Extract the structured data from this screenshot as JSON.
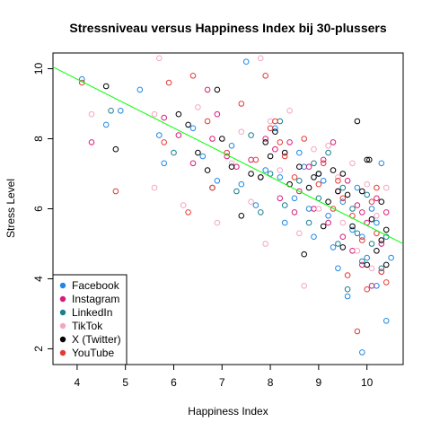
{
  "chart_data": {
    "type": "scatter",
    "title": "Stressniveau versus Happiness Index bij 30-plussers",
    "xlabel": "Happiness Index",
    "ylabel": "Stress Level",
    "xlim": [
      3.5,
      10.75
    ],
    "ylim": [
      1.55,
      10.45
    ],
    "x_ticks": [
      "4",
      "5",
      "6",
      "7",
      "8",
      "9",
      "10"
    ],
    "y_ticks": [
      "2",
      "4",
      "6",
      "8",
      "10"
    ],
    "grid": false,
    "legend_position": "bottom-left",
    "trendline": {
      "color": "#00ff00",
      "x1": 3.5,
      "y1": 10.05,
      "x2": 10.75,
      "y2": 5.0
    },
    "series": [
      {
        "name": "Facebook",
        "color": "#1e88e5",
        "points": [
          [
            4.1,
            9.7
          ],
          [
            4.6,
            8.4
          ],
          [
            4.9,
            8.8
          ],
          [
            5.3,
            9.4
          ],
          [
            5.7,
            8.1
          ],
          [
            5.8,
            7.3
          ],
          [
            6.4,
            8.3
          ],
          [
            6.9,
            6.8
          ],
          [
            7.2,
            7.8
          ],
          [
            7.5,
            10.2
          ],
          [
            7.7,
            6.1
          ],
          [
            7.9,
            7.1
          ],
          [
            8.1,
            8.3
          ],
          [
            8.2,
            6.9
          ],
          [
            8.5,
            6.3
          ],
          [
            8.6,
            7.6
          ],
          [
            8.8,
            6.0
          ],
          [
            8.9,
            5.2
          ],
          [
            9.1,
            6.8
          ],
          [
            9.2,
            5.8
          ],
          [
            9.3,
            4.9
          ],
          [
            9.5,
            6.2
          ],
          [
            9.6,
            3.5
          ],
          [
            9.7,
            5.4
          ],
          [
            9.8,
            6.6
          ],
          [
            9.9,
            1.9
          ],
          [
            10.0,
            4.6
          ],
          [
            10.1,
            6.0
          ],
          [
            10.2,
            3.8
          ],
          [
            10.3,
            7.3
          ],
          [
            10.4,
            2.8
          ],
          [
            10.5,
            4.6
          ],
          [
            6.6,
            7.5
          ],
          [
            7.4,
            6.7
          ],
          [
            8.3,
            5.6
          ],
          [
            9.0,
            7.0
          ],
          [
            9.4,
            4.3
          ],
          [
            9.9,
            5.2
          ],
          [
            10.2,
            5.6
          ],
          [
            8.7,
            7.2
          ]
        ]
      },
      {
        "name": "Instagram",
        "color": "#d81b7a",
        "points": [
          [
            4.3,
            7.9
          ],
          [
            5.8,
            8.6
          ],
          [
            6.1,
            8.1
          ],
          [
            6.4,
            7.3
          ],
          [
            6.7,
            9.4
          ],
          [
            6.9,
            8.7
          ],
          [
            7.1,
            7.5
          ],
          [
            7.3,
            7.2
          ],
          [
            7.6,
            7.4
          ],
          [
            7.9,
            8.0
          ],
          [
            8.1,
            7.7
          ],
          [
            8.2,
            6.3
          ],
          [
            8.4,
            7.9
          ],
          [
            8.6,
            6.5
          ],
          [
            8.8,
            7.2
          ],
          [
            8.9,
            6.0
          ],
          [
            9.1,
            7.4
          ],
          [
            9.2,
            5.6
          ],
          [
            9.3,
            7.9
          ],
          [
            9.5,
            5.2
          ],
          [
            9.6,
            6.8
          ],
          [
            9.7,
            4.8
          ],
          [
            9.8,
            6.1
          ],
          [
            9.9,
            4.4
          ],
          [
            10.0,
            5.6
          ],
          [
            10.1,
            3.8
          ],
          [
            10.2,
            6.3
          ],
          [
            10.3,
            4.2
          ],
          [
            10.4,
            5.9
          ],
          [
            6.8,
            8.0
          ],
          [
            7.8,
            6.9
          ],
          [
            8.5,
            5.9
          ],
          [
            9.4,
            6.5
          ],
          [
            9.9,
            5.9
          ],
          [
            10.3,
            5.0
          ]
        ]
      },
      {
        "name": "LinkedIn",
        "color": "#1a7f8f",
        "points": [
          [
            4.7,
            8.8
          ],
          [
            6.0,
            7.6
          ],
          [
            6.8,
            6.6
          ],
          [
            7.3,
            6.5
          ],
          [
            7.6,
            8.1
          ],
          [
            7.8,
            5.9
          ],
          [
            8.0,
            7.0
          ],
          [
            8.2,
            8.5
          ],
          [
            8.3,
            6.1
          ],
          [
            8.6,
            6.8
          ],
          [
            8.8,
            5.6
          ],
          [
            9.0,
            6.3
          ],
          [
            9.2,
            7.6
          ],
          [
            9.4,
            5.0
          ],
          [
            9.5,
            6.6
          ],
          [
            9.6,
            3.7
          ],
          [
            9.8,
            5.3
          ],
          [
            9.9,
            4.5
          ],
          [
            10.0,
            6.4
          ],
          [
            10.1,
            5.0
          ],
          [
            10.3,
            4.3
          ],
          [
            10.4,
            5.2
          ],
          [
            8.9,
            7.3
          ],
          [
            9.7,
            6.0
          ]
        ]
      },
      {
        "name": "TikTok",
        "color": "#f4a6c0",
        "points": [
          [
            4.3,
            8.7
          ],
          [
            5.6,
            8.7
          ],
          [
            5.7,
            10.3
          ],
          [
            6.2,
            6.1
          ],
          [
            6.5,
            8.9
          ],
          [
            6.9,
            5.6
          ],
          [
            7.2,
            7.3
          ],
          [
            7.4,
            8.2
          ],
          [
            7.6,
            6.2
          ],
          [
            7.8,
            10.3
          ],
          [
            8.0,
            8.5
          ],
          [
            8.2,
            7.1
          ],
          [
            8.4,
            8.8
          ],
          [
            8.6,
            5.3
          ],
          [
            8.7,
            3.8
          ],
          [
            8.9,
            7.7
          ],
          [
            9.0,
            6.0
          ],
          [
            9.2,
            7.8
          ],
          [
            9.4,
            6.9
          ],
          [
            9.5,
            5.6
          ],
          [
            9.7,
            7.3
          ],
          [
            9.8,
            4.8
          ],
          [
            10.0,
            6.7
          ],
          [
            10.1,
            4.3
          ],
          [
            10.2,
            5.8
          ],
          [
            10.4,
            6.6
          ],
          [
            5.6,
            6.6
          ],
          [
            7.9,
            5.0
          ]
        ]
      },
      {
        "name": "X (Twitter)",
        "color": "#000000",
        "points": [
          [
            4.6,
            9.5
          ],
          [
            4.8,
            7.7
          ],
          [
            6.1,
            8.7
          ],
          [
            6.5,
            7.6
          ],
          [
            6.9,
            9.4
          ],
          [
            7.0,
            8.0
          ],
          [
            7.2,
            7.2
          ],
          [
            7.4,
            5.8
          ],
          [
            7.6,
            7.0
          ],
          [
            7.8,
            6.9
          ],
          [
            8.0,
            7.5
          ],
          [
            8.1,
            8.2
          ],
          [
            8.3,
            7.6
          ],
          [
            8.4,
            6.7
          ],
          [
            8.6,
            7.2
          ],
          [
            8.7,
            4.7
          ],
          [
            8.9,
            6.9
          ],
          [
            9.0,
            7.0
          ],
          [
            9.1,
            5.5
          ],
          [
            9.3,
            7.1
          ],
          [
            9.4,
            6.5
          ],
          [
            9.5,
            4.9
          ],
          [
            9.6,
            6.4
          ],
          [
            9.7,
            5.5
          ],
          [
            9.8,
            8.5
          ],
          [
            9.9,
            6.5
          ],
          [
            10.0,
            4.4
          ],
          [
            10.05,
            7.4
          ],
          [
            10.1,
            5.7
          ],
          [
            10.2,
            4.8
          ],
          [
            10.3,
            6.2
          ],
          [
            10.4,
            5.4
          ],
          [
            6.3,
            8.4
          ],
          [
            7.9,
            7.9
          ],
          [
            8.8,
            6.6
          ],
          [
            9.5,
            7.0
          ],
          [
            10.0,
            7.4
          ],
          [
            10.3,
            5.1
          ],
          [
            6.7,
            7.1
          ],
          [
            9.2,
            6.2
          ],
          [
            10.4,
            4.4
          ]
        ]
      },
      {
        "name": "YouTube",
        "color": "#e53935",
        "points": [
          [
            4.1,
            9.6
          ],
          [
            4.8,
            6.5
          ],
          [
            5.9,
            9.6
          ],
          [
            6.4,
            9.8
          ],
          [
            6.7,
            8.5
          ],
          [
            6.8,
            6.6
          ],
          [
            7.1,
            7.6
          ],
          [
            7.4,
            9.0
          ],
          [
            7.7,
            7.4
          ],
          [
            7.9,
            9.8
          ],
          [
            8.0,
            8.3
          ],
          [
            8.1,
            8.5
          ],
          [
            8.3,
            7.5
          ],
          [
            8.5,
            6.9
          ],
          [
            8.7,
            8.0
          ],
          [
            9.0,
            6.7
          ],
          [
            9.1,
            7.3
          ],
          [
            9.3,
            6.0
          ],
          [
            9.5,
            6.3
          ],
          [
            9.6,
            4.1
          ],
          [
            9.7,
            5.8
          ],
          [
            9.8,
            2.5
          ],
          [
            9.9,
            5.1
          ],
          [
            10.0,
            3.7
          ],
          [
            10.1,
            6.2
          ],
          [
            10.2,
            5.3
          ],
          [
            10.3,
            4.2
          ],
          [
            10.4,
            3.9
          ],
          [
            5.8,
            7.9
          ],
          [
            6.3,
            5.9
          ],
          [
            8.2,
            7.9
          ],
          [
            9.4,
            6.8
          ],
          [
            10.2,
            6.6
          ]
        ]
      }
    ]
  }
}
